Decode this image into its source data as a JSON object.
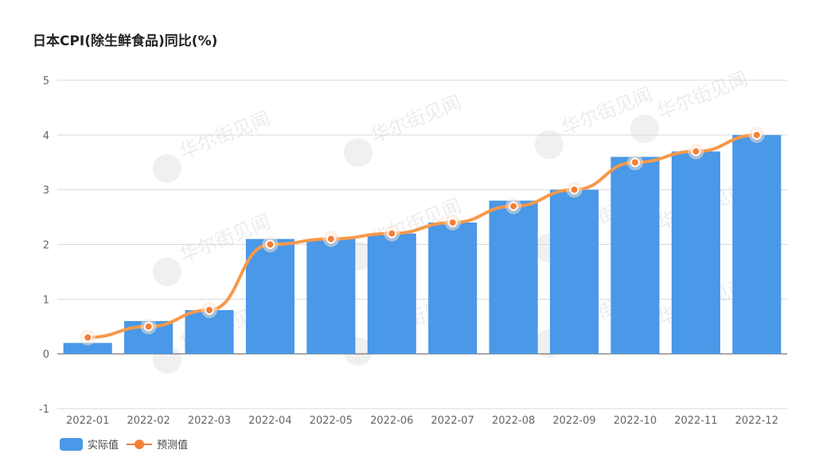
{
  "title": "日本CPI(除生鲜食品)同比(%)",
  "watermark": "华尔街见闻",
  "legend": {
    "bar_label": "实际值",
    "line_label": "预测值"
  },
  "colors": {
    "bar": "#4a98e8",
    "line": "#f7994a",
    "marker": "#f57f34",
    "grid": "#d9d9d9",
    "axis": "#666666"
  },
  "chart_data": {
    "type": "bar",
    "title": "日本CPI(除生鲜食品)同比(%)",
    "xlabel": "",
    "ylabel": "",
    "ylim": [
      -1,
      5
    ],
    "yticks": [
      5,
      4,
      3,
      2,
      1,
      0,
      -1
    ],
    "grid": true,
    "legend_position": "bottom-left",
    "categories": [
      "2022-01",
      "2022-02",
      "2022-03",
      "2022-04",
      "2022-05",
      "2022-06",
      "2022-07",
      "2022-08",
      "2022-09",
      "2022-10",
      "2022-11",
      "2022-12"
    ],
    "series": [
      {
        "name": "实际值",
        "type": "bar",
        "values": [
          0.2,
          0.6,
          0.8,
          2.1,
          2.1,
          2.2,
          2.4,
          2.8,
          3.0,
          3.6,
          3.7,
          4.0
        ]
      },
      {
        "name": "预测值",
        "type": "line",
        "values": [
          0.3,
          0.5,
          0.8,
          2.0,
          2.1,
          2.2,
          2.4,
          2.7,
          3.0,
          3.5,
          3.7,
          4.0
        ]
      }
    ]
  }
}
